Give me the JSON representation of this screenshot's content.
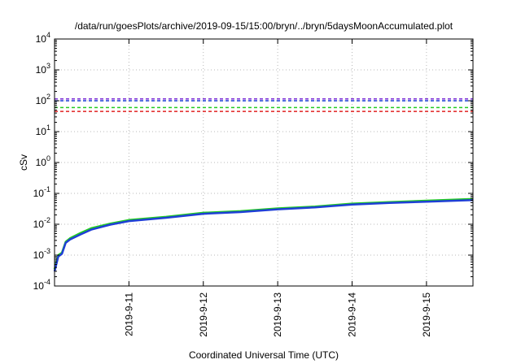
{
  "chart_data": {
    "type": "line",
    "title": "/data/run/goesPlots/archive/2019-09-15/15:00/bryn/../bryn/5daysMoonAccumulated.plot",
    "xlabel": "Coordinated Universal Time (UTC)",
    "ylabel": "cSv",
    "yscale": "log",
    "ylim": [
      0.0001,
      10000
    ],
    "y_ticks": [
      {
        "value": 0.0001,
        "base": "10",
        "exp": "-4"
      },
      {
        "value": 0.001,
        "base": "10",
        "exp": "-3"
      },
      {
        "value": 0.01,
        "base": "10",
        "exp": "-2"
      },
      {
        "value": 0.1,
        "base": "10",
        "exp": "-1"
      },
      {
        "value": 1,
        "base": "10",
        "exp": "0"
      },
      {
        "value": 10,
        "base": "10",
        "exp": "1"
      },
      {
        "value": 100,
        "base": "10",
        "exp": "2"
      },
      {
        "value": 1000,
        "base": "10",
        "exp": "3"
      },
      {
        "value": 10000,
        "base": "10",
        "exp": "4"
      }
    ],
    "xlim": [
      "2019-09-10 00:00",
      "2019-09-15 15:00"
    ],
    "x_ticks": [
      "2019-9-11",
      "2019-9-12",
      "2019-9-13",
      "2019-9-14",
      "2019-9-15"
    ],
    "grid": true,
    "reference_lines": [
      {
        "value": 115,
        "color": "#7a2bd6"
      },
      {
        "value": 100,
        "color": "#1f3fd6"
      },
      {
        "value": 60,
        "color": "#22cc22"
      },
      {
        "value": 45,
        "color": "#e02020"
      }
    ],
    "series": [
      {
        "color": "#22cc22",
        "x": [
          "2019-09-10 00:00",
          "2019-09-10 01:12",
          "2019-09-10 02:24",
          "2019-09-10 03:36",
          "2019-09-10 05:00",
          "2019-09-10 08:24",
          "2019-09-10 12:00",
          "2019-09-10 18:00",
          "2019-09-11 00:00",
          "2019-09-11 12:00",
          "2019-09-12 00:00",
          "2019-09-12 12:00",
          "2019-09-13 00:00",
          "2019-09-13 12:00",
          "2019-09-14 00:00",
          "2019-09-14 12:00",
          "2019-09-15 00:00",
          "2019-09-15 15:00"
        ],
        "values": [
          0.00035,
          0.001,
          0.0012,
          0.0027,
          0.0035,
          0.0052,
          0.0075,
          0.0105,
          0.0137,
          0.0174,
          0.0235,
          0.0265,
          0.0325,
          0.0375,
          0.0465,
          0.052,
          0.058,
          0.066
        ]
      },
      {
        "color": "#1f3fd6",
        "x": [
          "2019-09-10 00:00",
          "2019-09-10 01:12",
          "2019-09-10 02:24",
          "2019-09-10 03:36",
          "2019-09-10 05:00",
          "2019-09-10 08:24",
          "2019-09-10 12:00",
          "2019-09-10 18:00",
          "2019-09-11 00:00",
          "2019-09-11 12:00",
          "2019-09-12 00:00",
          "2019-09-12 12:00",
          "2019-09-13 00:00",
          "2019-09-13 12:00",
          "2019-09-14 00:00",
          "2019-09-14 12:00",
          "2019-09-15 00:00",
          "2019-09-15 15:00"
        ],
        "values": [
          0.0003,
          0.0009,
          0.0011,
          0.0025,
          0.0032,
          0.0047,
          0.0068,
          0.0097,
          0.0127,
          0.0162,
          0.0218,
          0.0248,
          0.0305,
          0.0352,
          0.0435,
          0.0488,
          0.054,
          0.061
        ]
      }
    ]
  }
}
